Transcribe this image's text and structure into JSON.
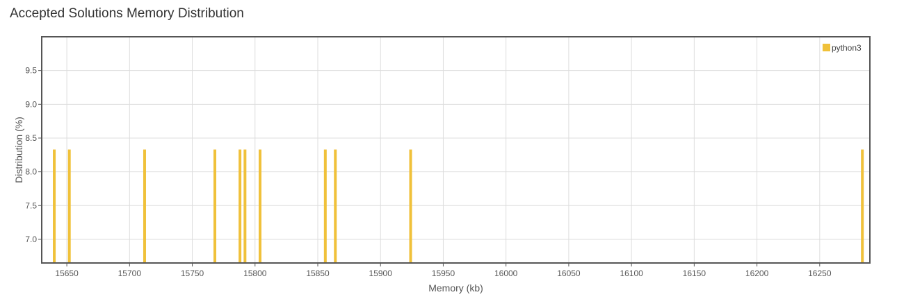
{
  "title": "Accepted Solutions Memory Distribution",
  "colors": {
    "series": "#f0c13a",
    "grid": "#dddddd",
    "frame": "#555555"
  },
  "chart_data": {
    "type": "bar",
    "title": "Accepted Solutions Memory Distribution",
    "xlabel": "Memory (kb)",
    "ylabel": "Distribution (%)",
    "xlim": [
      15630,
      16290
    ],
    "ylim": [
      6.65,
      10.0
    ],
    "xticks": [
      15650,
      15700,
      15750,
      15800,
      15850,
      15900,
      15950,
      16000,
      16050,
      16100,
      16150,
      16200,
      16250
    ],
    "yticks": [
      7.0,
      7.5,
      8.0,
      8.5,
      9.0,
      9.5
    ],
    "grid": true,
    "legend_position": "top-right",
    "series": [
      {
        "name": "python3",
        "x": [
          15640,
          15652,
          15712,
          15768,
          15788,
          15792,
          15804,
          15856,
          15864,
          15924,
          16284
        ],
        "values": [
          8.33,
          8.33,
          8.33,
          8.33,
          8.33,
          8.33,
          8.33,
          8.33,
          8.33,
          8.33,
          8.33
        ]
      }
    ]
  }
}
